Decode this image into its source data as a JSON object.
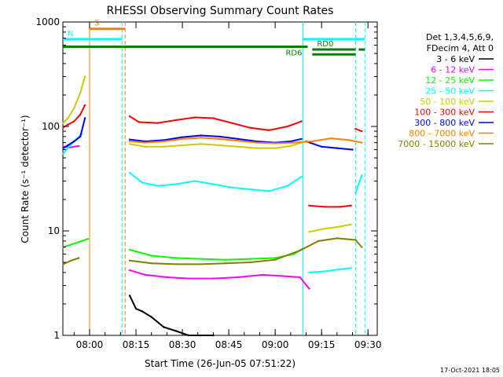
{
  "chart_data": {
    "type": "line",
    "title": "RHESSI Observing Summary Count Rates",
    "xlabel": "Start Time (26-Jun-05 07:51:22)",
    "ylabel": "Count Rate (s⁻¹ detector⁻¹)",
    "y_scale": "log",
    "ylim": [
      1,
      1000
    ],
    "xlim": [
      "07:51:22",
      "09:33:00"
    ],
    "x_tick_labels": [
      "08:00",
      "08:15",
      "08:30",
      "08:45",
      "09:00",
      "09:15",
      "09:30"
    ],
    "y_tick_labels": [
      "1",
      "10",
      "100",
      "1000"
    ],
    "grid": false,
    "legend_placement": "right",
    "legend_header": [
      "Det 1,3,4,5,6,9,",
      "FDecim 4, Att 0"
    ],
    "timestamp": "17-Oct-2021 18:05",
    "series": [
      {
        "name": "3 - 6 keV",
        "color": "#000000",
        "segments": [
          {
            "x": [
              "07:51:30",
              "07:52:30",
              "07:53:30"
            ],
            "y": [
              63,
              64,
              63
            ]
          },
          {
            "x": [
              "08:13",
              "08:15",
              "08:17",
              "08:20",
              "08:24",
              "08:28",
              "08:32",
              "08:36",
              "08:40"
            ],
            "y": [
              2.4,
              1.8,
              1.7,
              1.5,
              1.2,
              1.1,
              1.0,
              1.0,
              1.0
            ]
          }
        ]
      },
      {
        "name": "6 - 12 keV",
        "color": "#ff00ff",
        "segments": [
          {
            "x": [
              "07:51:30",
              "07:53:30",
              "07:56:30"
            ],
            "y": [
              64,
              63,
              65
            ]
          },
          {
            "x": [
              "08:13",
              "08:18",
              "08:25",
              "08:32",
              "08:40",
              "08:48",
              "08:56",
              "09:02",
              "09:08",
              "09:11"
            ],
            "y": [
              4.2,
              3.8,
              3.6,
              3.5,
              3.5,
              3.6,
              3.8,
              3.7,
              3.6,
              2.8
            ]
          }
        ]
      },
      {
        "name": "12 - 25 keV",
        "color": "#00ff00",
        "segments": [
          {
            "x": [
              "07:51:30",
              "07:54",
              "07:57",
              "07:59:30"
            ],
            "y": [
              7.0,
              7.4,
              7.9,
              8.4
            ]
          },
          {
            "x": [
              "08:13",
              "08:20",
              "08:28",
              "08:36",
              "08:44",
              "08:52",
              "09:00",
              "09:06",
              "09:09"
            ],
            "y": [
              6.6,
              5.8,
              5.5,
              5.4,
              5.3,
              5.4,
              5.5,
              6.0,
              6.8
            ]
          }
        ]
      },
      {
        "name": "25 - 50 keV",
        "color": "#00ffff",
        "segments": [
          {
            "x": [
              "07:51:30",
              "07:53",
              "07:55",
              "07:57:30"
            ],
            "y": [
              55,
              62,
              72,
              85
            ]
          },
          {
            "x": [
              "08:13",
              "08:17",
              "08:22",
              "08:28",
              "08:34",
              "08:40",
              "08:46",
              "08:52",
              "08:58",
              "09:04",
              "09:08:30"
            ],
            "y": [
              36,
              29,
              27,
              28,
              30,
              28,
              26,
              25,
              24,
              27,
              33
            ]
          },
          {
            "x": [
              "09:11",
              "09:16",
              "09:21",
              "09:24:30"
            ],
            "y": [
              4.0,
              4.1,
              4.3,
              4.4
            ]
          },
          {
            "x": [
              "09:26",
              "09:28"
            ],
            "y": [
              23,
              34
            ]
          }
        ]
      },
      {
        "name": "50 - 100 keV",
        "color": "#cccc00",
        "segments": [
          {
            "x": [
              "07:51:30",
              "07:53",
              "07:55",
              "07:57",
              "07:58:30"
            ],
            "y": [
              108,
              120,
              150,
              210,
              300
            ]
          },
          {
            "x": [
              "08:13",
              "08:18",
              "08:24",
              "08:30",
              "08:36",
              "08:42",
              "08:48",
              "08:54",
              "09:00",
              "09:05",
              "09:08:30"
            ],
            "y": [
              68,
              64,
              64,
              66,
              68,
              66,
              64,
              62,
              62,
              65,
              70
            ]
          },
          {
            "x": [
              "09:11",
              "09:16",
              "09:21",
              "09:24:30"
            ],
            "y": [
              9.8,
              10.5,
              11.0,
              11.5
            ]
          }
        ]
      },
      {
        "name": "100 - 300 keV",
        "color": "#ff0000",
        "segments": [
          {
            "x": [
              "07:51:30",
              "07:53",
              "07:55",
              "07:57",
              "07:58:30"
            ],
            "y": [
              98,
              104,
              112,
              130,
              160
            ]
          },
          {
            "x": [
              "08:13",
              "08:16",
              "08:22",
              "08:28",
              "08:34",
              "08:40",
              "08:46",
              "08:52",
              "08:58",
              "09:04",
              "09:08:30"
            ],
            "y": [
              125,
              110,
              108,
              115,
              122,
              120,
              108,
              97,
              92,
              100,
              112
            ]
          },
          {
            "x": [
              "09:11",
              "09:16",
              "09:21",
              "09:24:30"
            ],
            "y": [
              17.5,
              17.0,
              17.0,
              17.5
            ]
          },
          {
            "x": [
              "09:26",
              "09:28"
            ],
            "y": [
              95,
              90
            ]
          }
        ]
      },
      {
        "name": "300 - 800 keV",
        "color": "#0000ff",
        "segments": [
          {
            "x": [
              "07:51:30",
              "07:53",
              "07:55",
              "07:57",
              "07:58:30"
            ],
            "y": [
              62,
              66,
              72,
              80,
              120
            ]
          },
          {
            "x": [
              "08:13",
              "08:18",
              "08:24",
              "08:30",
              "08:36",
              "08:42",
              "08:48",
              "08:54",
              "09:00",
              "09:05",
              "09:08:30"
            ],
            "y": [
              75,
              72,
              74,
              79,
              82,
              80,
              76,
              72,
              70,
              72,
              76
            ]
          },
          {
            "x": [
              "09:10",
              "09:15",
              "09:20",
              "09:25"
            ],
            "y": [
              72,
              64,
              62,
              60
            ]
          }
        ]
      },
      {
        "name": "800 - 7000 keV",
        "color": "#ff8000",
        "segments": [
          {
            "x": [
              "08:13",
              "08:18",
              "08:24",
              "08:30",
              "08:36",
              "08:42",
              "08:48",
              "08:54",
              "09:00",
              "09:06",
              "09:12",
              "09:18",
              "09:24",
              "09:28"
            ],
            "y": [
              72,
              70,
              72,
              76,
              78,
              76,
              73,
              70,
              69,
              70,
              72,
              77,
              74,
              70
            ]
          }
        ]
      },
      {
        "name": "7000 - 15000 keV",
        "color": "#808000",
        "segments": [
          {
            "x": [
              "07:51:30",
              "07:54",
              "07:56:30"
            ],
            "y": [
              4.8,
              5.2,
              5.5
            ]
          },
          {
            "x": [
              "08:13",
              "08:20",
              "08:28",
              "08:36",
              "08:44",
              "08:52",
              "09:00",
              "09:08",
              "09:14",
              "09:20",
              "09:26",
              "09:28"
            ],
            "y": [
              5.2,
              4.9,
              4.8,
              4.8,
              4.9,
              5.0,
              5.3,
              6.5,
              8.0,
              8.5,
              8.2,
              7.0
            ]
          }
        ]
      }
    ],
    "vertical_lines": [
      {
        "x": "08:00",
        "color": "#ff8000",
        "style": "solid"
      },
      {
        "x": "08:10:30",
        "color": "#00ffff",
        "style": "dashed"
      },
      {
        "x": "08:11:30",
        "color": "#ff8000",
        "style": "dashed"
      },
      {
        "x": "09:09",
        "color": "#00ffff",
        "style": "solid"
      },
      {
        "x": "09:26",
        "color": "#00ffff",
        "style": "dashed"
      },
      {
        "x": "09:29",
        "color": "#00ffff",
        "style": "dashed"
      }
    ],
    "flag_bars": [
      {
        "label": "S",
        "color": "#ff8000",
        "x_start": "08:00",
        "x_end": "08:11:30",
        "level": 860,
        "width": 3
      },
      {
        "label": "N",
        "color": "#00ffff",
        "x_start": "07:51:22",
        "x_end": "08:10:30",
        "level": 685,
        "width": 3
      },
      {
        "label": "",
        "color": "#00ffff",
        "x_start": "09:09",
        "x_end": "09:29",
        "level": 685,
        "width": 3
      },
      {
        "label": "RD0",
        "color": "#008000",
        "x_start": "09:12",
        "x_end": "09:26:00",
        "level": 545,
        "width": 3
      },
      {
        "label": "",
        "color": "#008000",
        "x_start": "09:27",
        "x_end": "09:29",
        "level": 545,
        "width": 3
      },
      {
        "label": "RD6",
        "color": "#008000",
        "x_start": "07:51:22",
        "x_end": "09:10:30",
        "level": 580,
        "width": 3
      },
      {
        "label": "",
        "color": "#008000",
        "x_start": "09:12",
        "x_end": "09:26",
        "level": 490,
        "width": 3
      }
    ]
  }
}
